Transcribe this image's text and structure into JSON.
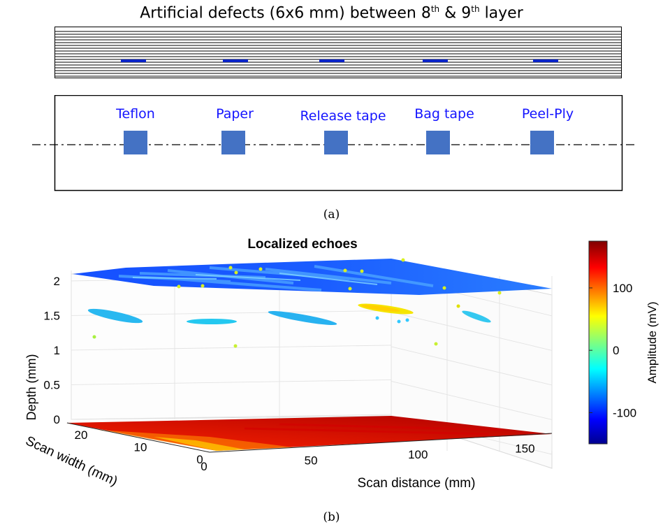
{
  "figure_a": {
    "title_main": "Artificial defects (6x6 mm) between 8",
    "title_sup1": "th",
    "title_mid": " & 9",
    "title_sup2": "th",
    "title_end": " layer",
    "defects": [
      "Teflon",
      "Paper",
      "Release tape",
      "Bag tape",
      "Peel-Ply"
    ],
    "caption": "(a)",
    "colors": {
      "defect_blue": "#4472c4",
      "label_blue": "#1414ff"
    }
  },
  "figure_b": {
    "caption": "(b)"
  },
  "chart_data": {
    "type": "scatter",
    "title": "Localized echoes",
    "xlabel": "Scan distance (mm)",
    "ylabel": "Scan width (mm)",
    "zlabel": "Depth (mm)",
    "x_ticks": [
      "0",
      "50",
      "100",
      "150"
    ],
    "y_ticks": [
      "0",
      "10",
      "20"
    ],
    "z_ticks": [
      "0",
      "0.5",
      "1",
      "1.5",
      "2"
    ],
    "xlim": [
      0,
      160
    ],
    "ylim": [
      0,
      24
    ],
    "zlim": [
      0,
      2.1
    ],
    "grid": true,
    "colorbar": {
      "label": "Amplitude (mV)",
      "ticks": [
        "100",
        "0",
        "-100"
      ],
      "range": [
        -150,
        175
      ]
    },
    "series": [
      {
        "surface": "front",
        "depth_mm": 2.0,
        "amplitude_mV": -110
      },
      {
        "surface": "defect echoes",
        "depth_mm": 1.4,
        "amplitude_mV": -60
      },
      {
        "surface": "back",
        "depth_mm": 0.0,
        "amplitude_mV": 160
      }
    ]
  }
}
